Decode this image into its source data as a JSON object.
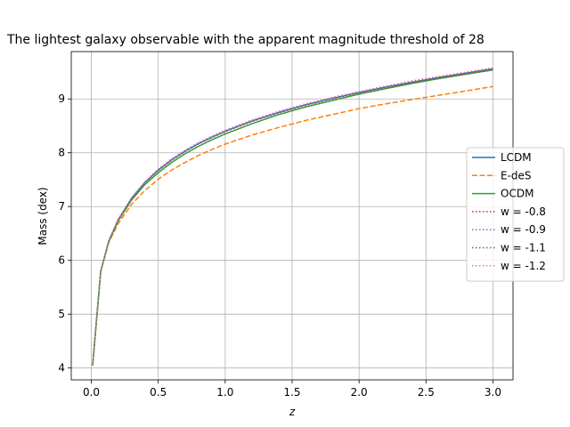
{
  "chart_data": {
    "type": "line",
    "title": "The lightest galaxy observable with the apparent magnitude threshold of 28",
    "xlabel": "z",
    "ylabel": "Mass (dex)",
    "xlim": [
      -0.15,
      3.15
    ],
    "ylim": [
      3.78,
      9.88
    ],
    "xticks": [
      0.0,
      0.5,
      1.0,
      1.5,
      2.0,
      2.5,
      3.0
    ],
    "xtick_labels": [
      "0.0",
      "0.5",
      "1.0",
      "1.5",
      "2.0",
      "2.5",
      "3.0"
    ],
    "yticks": [
      4,
      5,
      6,
      7,
      8,
      9
    ],
    "ytick_labels": [
      "4",
      "5",
      "6",
      "7",
      "8",
      "9"
    ],
    "grid": true,
    "legend_position": "center-right",
    "x": [
      0.01,
      0.07,
      0.13,
      0.2,
      0.3,
      0.4,
      0.5,
      0.6,
      0.7,
      0.8,
      0.9,
      1.0,
      1.2,
      1.4,
      1.6,
      1.8,
      2.0,
      2.2,
      2.4,
      2.6,
      2.8,
      3.0
    ],
    "series": [
      {
        "name": "LCDM",
        "color": "#1f77b4",
        "style": "solid",
        "values": [
          4.05,
          5.8,
          6.36,
          6.75,
          7.15,
          7.45,
          7.68,
          7.87,
          8.03,
          8.17,
          8.29,
          8.4,
          8.59,
          8.75,
          8.89,
          9.01,
          9.12,
          9.22,
          9.31,
          9.4,
          9.48,
          9.56
        ]
      },
      {
        "name": "E-deS",
        "color": "#ff7f0e",
        "style": "dashed",
        "values": [
          4.05,
          5.79,
          6.33,
          6.68,
          7.04,
          7.3,
          7.51,
          7.68,
          7.82,
          7.95,
          8.06,
          8.16,
          8.33,
          8.47,
          8.6,
          8.71,
          8.82,
          8.91,
          8.99,
          9.07,
          9.15,
          9.23
        ]
      },
      {
        "name": "OCDM",
        "color": "#2ca02c",
        "style": "solid",
        "values": [
          4.05,
          5.8,
          6.35,
          6.73,
          7.12,
          7.41,
          7.63,
          7.82,
          7.98,
          8.12,
          8.24,
          8.35,
          8.54,
          8.71,
          8.85,
          8.97,
          9.09,
          9.19,
          9.29,
          9.38,
          9.46,
          9.54
        ]
      },
      {
        "name": "w = -0.8",
        "color": "#d62728",
        "style": "dotted",
        "values": [
          4.05,
          5.8,
          6.36,
          6.74,
          7.14,
          7.44,
          7.67,
          7.86,
          8.02,
          8.16,
          8.28,
          8.39,
          8.58,
          8.74,
          8.88,
          9.0,
          9.11,
          9.21,
          9.31,
          9.39,
          9.47,
          9.55
        ]
      },
      {
        "name": "w = -0.9",
        "color": "#9467bd",
        "style": "dotted",
        "values": [
          4.05,
          5.8,
          6.36,
          6.75,
          7.15,
          7.45,
          7.68,
          7.87,
          8.03,
          8.17,
          8.29,
          8.4,
          8.59,
          8.75,
          8.89,
          9.01,
          9.12,
          9.22,
          9.32,
          9.4,
          9.48,
          9.56
        ]
      },
      {
        "name": "w = -1.1",
        "color": "#8c564b",
        "style": "dotted",
        "values": [
          4.05,
          5.8,
          6.37,
          6.76,
          7.16,
          7.46,
          7.69,
          7.88,
          8.04,
          8.18,
          8.3,
          8.41,
          8.6,
          8.76,
          8.9,
          9.02,
          9.13,
          9.23,
          9.33,
          9.41,
          9.49,
          9.57
        ]
      },
      {
        "name": "w = -1.2",
        "color": "#e377c2",
        "style": "dotted",
        "values": [
          4.05,
          5.8,
          6.37,
          6.76,
          7.16,
          7.46,
          7.7,
          7.89,
          8.05,
          8.19,
          8.31,
          8.42,
          8.61,
          8.77,
          8.91,
          9.03,
          9.14,
          9.24,
          9.34,
          9.42,
          9.5,
          9.58
        ]
      }
    ]
  }
}
